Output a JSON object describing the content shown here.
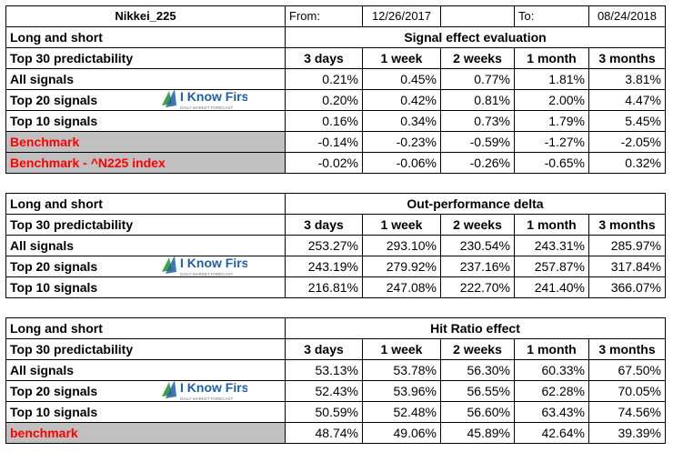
{
  "header": {
    "ticker": "Nikkei_225",
    "from_label": "From:",
    "from_date": "12/26/2017",
    "to_label": "To:",
    "to_date": "08/24/2018"
  },
  "logo": {
    "text": "I Know First",
    "tagline": "DAILY MARKET FORECAST"
  },
  "sections": [
    {
      "left_label": "Long and short",
      "title": "Signal effect evaluation",
      "predictability": "Top 30 predictability",
      "columns": [
        "3 days",
        "1 week",
        "2 weeks",
        "1 month",
        "3 months"
      ],
      "rows": [
        {
          "label": "All signals",
          "values": [
            "0.21%",
            "0.45%",
            "0.77%",
            "1.81%",
            "3.81%"
          ],
          "style": "normal"
        },
        {
          "label": "Top 20 signals",
          "values": [
            "0.20%",
            "0.42%",
            "0.81%",
            "2.00%",
            "4.47%"
          ],
          "style": "normal"
        },
        {
          "label": "Top 10 signals",
          "values": [
            "0.16%",
            "0.34%",
            "0.73%",
            "1.79%",
            "5.45%"
          ],
          "style": "normal"
        },
        {
          "label": "Benchmark",
          "values": [
            "-0.14%",
            "-0.23%",
            "-0.59%",
            "-1.27%",
            "-2.05%"
          ],
          "style": "benchmark"
        },
        {
          "label": "Benchmark - ^N225 index",
          "values": [
            "-0.02%",
            "-0.06%",
            "-0.26%",
            "-0.65%",
            "0.32%"
          ],
          "style": "benchmark"
        }
      ]
    },
    {
      "left_label": "Long and short",
      "title": "Out-performance delta",
      "predictability": "Top 30 predictability",
      "columns": [
        "3 days",
        "1 week",
        "2 weeks",
        "1 month",
        "3 months"
      ],
      "rows": [
        {
          "label": "All signals",
          "values": [
            "253.27%",
            "293.10%",
            "230.54%",
            "243.31%",
            "285.97%"
          ],
          "style": "normal"
        },
        {
          "label": "Top 20 signals",
          "values": [
            "243.19%",
            "279.92%",
            "237.16%",
            "257.87%",
            "317.84%"
          ],
          "style": "normal"
        },
        {
          "label": "Top 10 signals",
          "values": [
            "216.81%",
            "247.08%",
            "222.70%",
            "241.40%",
            "366.07%"
          ],
          "style": "normal"
        }
      ]
    },
    {
      "left_label": "Long and short",
      "title": "Hit Ratio effect",
      "predictability": "Top 30 predictability",
      "columns": [
        "3 days",
        "1 week",
        "2 weeks",
        "1 month",
        "3 months"
      ],
      "rows": [
        {
          "label": "All signals",
          "values": [
            "53.13%",
            "53.78%",
            "56.30%",
            "60.33%",
            "67.50%"
          ],
          "style": "normal"
        },
        {
          "label": "Top 20 signals",
          "values": [
            "52.43%",
            "53.96%",
            "56.55%",
            "62.28%",
            "70.05%"
          ],
          "style": "normal"
        },
        {
          "label": "Top 10 signals",
          "values": [
            "50.59%",
            "52.48%",
            "56.60%",
            "63.43%",
            "74.56%"
          ],
          "style": "normal"
        },
        {
          "label": "benchmark",
          "values": [
            "48.74%",
            "49.06%",
            "45.89%",
            "42.64%",
            "39.39%"
          ],
          "style": "benchmark"
        }
      ]
    }
  ],
  "colors": {
    "benchmark_text": "#ff0000",
    "benchmark_fill": "#c0c0c0",
    "logo_blue": "#1f5fa8",
    "logo_green": "#3aa34a"
  }
}
